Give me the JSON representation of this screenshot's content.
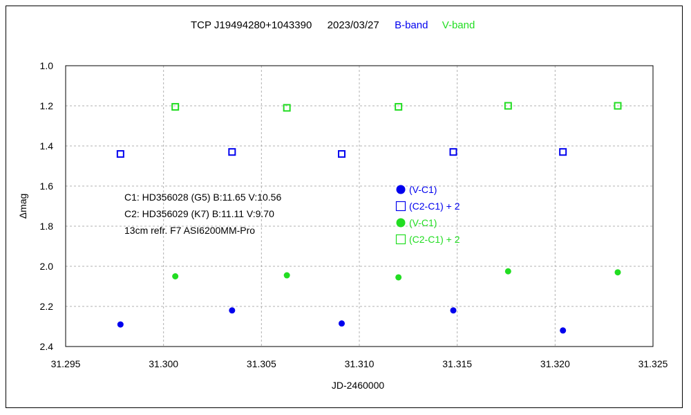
{
  "header": {
    "object": "TCP J19494280+1043390",
    "date": "2023/03/27",
    "band_b": "B-band",
    "band_v": "V-band"
  },
  "notes": [
    "C1: HD356028 (G5)  B:11.65  V:10.56",
    "C2: HD356029 (K7)  B:11.11  V:9.70",
    "13cm  refr.  F7  ASI6200MM-Pro"
  ],
  "legend": [
    "(V-C1)",
    "(C2-C1) + 2",
    "(V-C1)",
    "(C2-C1) + 2"
  ],
  "colors": {
    "b_band": "#0000ee",
    "v_band": "#22dd22",
    "grid": "#b0b0b0"
  },
  "chart_data": {
    "type": "scatter",
    "xlabel": "JD-2460000",
    "ylabel": "Δmag",
    "xlim": [
      31.295,
      31.325
    ],
    "ylim": [
      1.0,
      2.4
    ],
    "y_inverted": true,
    "grid": true,
    "x_ticks": [
      "31.295",
      "31.300",
      "31.305",
      "31.310",
      "31.315",
      "31.320",
      "31.325"
    ],
    "y_ticks": [
      "1.0",
      "1.2",
      "1.4",
      "1.6",
      "1.8",
      "2.0",
      "2.2",
      "2.4"
    ],
    "series": [
      {
        "name": "(V-C1)",
        "band": "B",
        "marker": "filled-circle",
        "color": "#0000ee",
        "x": [
          31.2978,
          31.3035,
          31.3091,
          31.3148,
          31.3204
        ],
        "y": [
          2.29,
          2.22,
          2.285,
          2.22,
          2.32
        ]
      },
      {
        "name": "(C2-C1) + 2",
        "band": "B",
        "marker": "open-square",
        "color": "#0000ee",
        "x": [
          31.2978,
          31.3035,
          31.3091,
          31.3148,
          31.3204
        ],
        "y": [
          1.44,
          1.43,
          1.44,
          1.43,
          1.43
        ]
      },
      {
        "name": "(V-C1)",
        "band": "V",
        "marker": "filled-circle",
        "color": "#22dd22",
        "x": [
          31.3006,
          31.3063,
          31.312,
          31.3176,
          31.3232
        ],
        "y": [
          2.05,
          2.045,
          2.055,
          2.025,
          2.03
        ]
      },
      {
        "name": "(C2-C1) + 2",
        "band": "V",
        "marker": "open-square",
        "color": "#22dd22",
        "x": [
          31.3006,
          31.3063,
          31.312,
          31.3176,
          31.3232
        ],
        "y": [
          1.205,
          1.21,
          1.205,
          1.2,
          1.2
        ]
      }
    ]
  }
}
